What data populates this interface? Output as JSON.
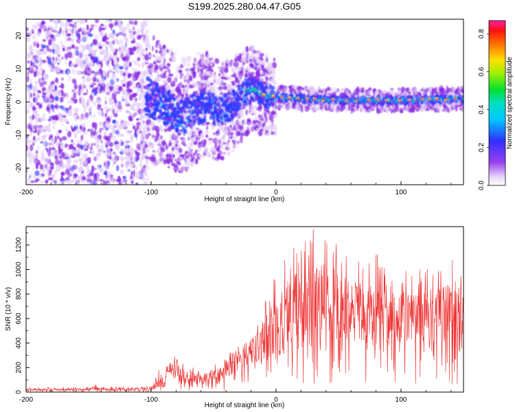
{
  "figure_title": "S199.2025.280.04.47.G05",
  "chart_data": [
    {
      "type": "heatmap",
      "title": "S199.2025.280.04.47.G05",
      "xlabel": "Height of straight line (km)",
      "ylabel": "Frequency (Hz)",
      "xlim": [
        -200,
        150
      ],
      "ylim": [
        -25,
        25
      ],
      "x_ticks": [
        -200,
        -100,
        0,
        100
      ],
      "x_tick_labels": [
        "-200",
        "-100",
        "0",
        "100"
      ],
      "y_ticks": [
        -20,
        -10,
        0,
        10,
        20
      ],
      "y_tick_labels": [
        "-20",
        "-10",
        "0",
        "10",
        "20"
      ],
      "colorbar": {
        "label": "Normalized spectral amplitude",
        "range": [
          0,
          0.87
        ],
        "ticks": [
          0,
          0.2,
          0.4,
          0.6,
          0.8
        ],
        "tick_labels": [
          "0.0",
          "0.2",
          "0.4",
          "0.6",
          "0.8"
        ],
        "colormap": "rainbow (white-violet-blue-cyan-green-yellow-red-magenta)"
      },
      "noise_region_x": [
        -200,
        -105
      ],
      "ridge": {
        "x": [
          -105,
          -95,
          -85,
          -75,
          -65,
          -55,
          -45,
          -35,
          -25,
          -18,
          -10,
          0,
          20,
          50,
          100,
          150
        ],
        "frequency": [
          2,
          0,
          -2,
          -5,
          -2,
          -1,
          -3,
          -1,
          3,
          4,
          2,
          1.5,
          1,
          0.5,
          0.5,
          1
        ],
        "peak_amplitude": [
          0.3,
          0.35,
          0.3,
          0.4,
          0.35,
          0.3,
          0.4,
          0.35,
          0.45,
          0.5,
          0.6,
          0.8,
          0.7,
          0.85,
          0.85,
          0.7
        ]
      },
      "colors": {
        "violet": "#8a2be2",
        "pale": "#e4cff8",
        "blue": "#2a3bff",
        "cyan": "#00e5e5",
        "green": "#20d020",
        "red": "#ff2020"
      }
    },
    {
      "type": "line",
      "title": "",
      "xlabel": "Height of straight line (km)",
      "ylabel": "SNR (10 * v/v)",
      "xlim": [
        -200,
        150
      ],
      "ylim": [
        0,
        1350
      ],
      "x_ticks": [
        -200,
        -100,
        0,
        100
      ],
      "x_tick_labels": [
        "-200",
        "-100",
        "0",
        "100"
      ],
      "y_ticks": [
        0,
        200,
        400,
        600,
        800,
        1000,
        1200
      ],
      "y_tick_labels": [
        "0",
        "200",
        "400",
        "600",
        "800",
        "1000",
        "1200"
      ],
      "series": [
        {
          "name": "SNR",
          "color": "#ee3333",
          "envelope_x": [
            -200,
            -150,
            -145,
            -140,
            -110,
            -100,
            -95,
            -85,
            -80,
            -75,
            -65,
            -60,
            -50,
            -40,
            -30,
            -20,
            -10,
            0,
            10,
            20,
            30,
            35,
            40,
            50,
            60,
            70,
            80,
            90,
            100,
            110,
            120,
            130,
            140,
            150
          ],
          "envelope_mean": [
            20,
            20,
            40,
            25,
            20,
            30,
            80,
            150,
            180,
            120,
            100,
            90,
            110,
            170,
            260,
            330,
            400,
            520,
            600,
            640,
            680,
            720,
            700,
            680,
            650,
            620,
            600,
            580,
            600,
            620,
            600,
            620,
            650,
            620
          ],
          "envelope_max": [
            40,
            40,
            90,
            50,
            40,
            70,
            200,
            260,
            300,
            250,
            200,
            180,
            220,
            300,
            420,
            520,
            700,
            1000,
            1150,
            1250,
            1350,
            1280,
            1280,
            1200,
            1100,
            1080,
            1150,
            1000,
            1000,
            1000,
            1000,
            1050,
            1100,
            980
          ]
        }
      ]
    }
  ]
}
